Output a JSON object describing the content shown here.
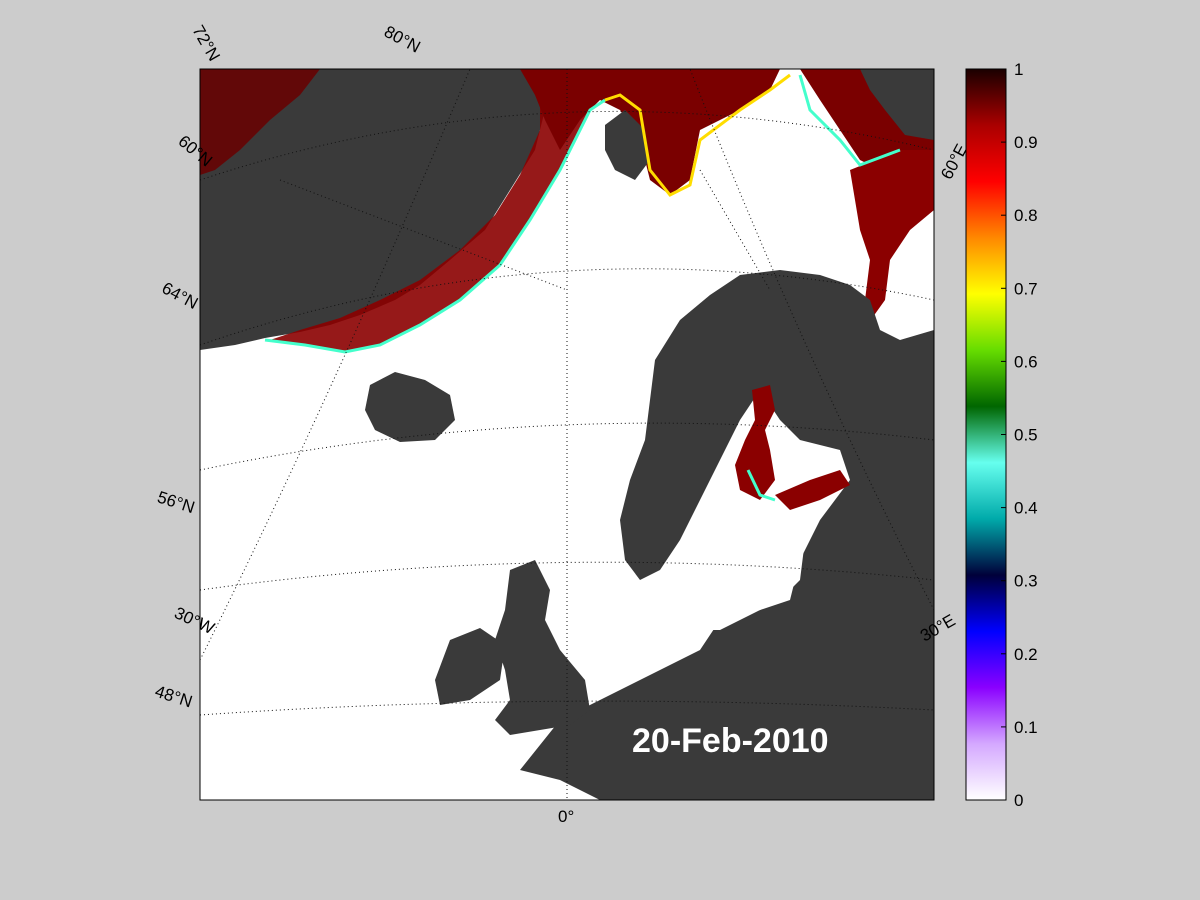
{
  "map": {
    "date": "20-Feb-2010",
    "colors": {
      "background": "#cccccc",
      "ocean": "#ffffff",
      "land": "#3a3a3a",
      "shallow": "#8a8a8a",
      "ice": "#8b0000"
    },
    "graticule_labels": {
      "lat": [
        "72°N",
        "80°N",
        "60°N",
        "64°N",
        "56°N",
        "48°N"
      ],
      "lon": [
        "30°W",
        "0°",
        "30°E",
        "60°E"
      ]
    }
  },
  "colorbar": {
    "ticks": [
      "0",
      "0.1",
      "0.2",
      "0.3",
      "0.4",
      "0.5",
      "0.6",
      "0.7",
      "0.8",
      "0.9",
      "1"
    ],
    "min": 0,
    "max": 1,
    "stops": [
      "#ffffff",
      "#d4a8ff",
      "#8a00ff",
      "#0000ff",
      "#00003a",
      "#00aaaa",
      "#66ffee",
      "#006600",
      "#66dd00",
      "#ffff00",
      "#ff8800",
      "#ff0000",
      "#aa0000",
      "#1a0000"
    ]
  }
}
